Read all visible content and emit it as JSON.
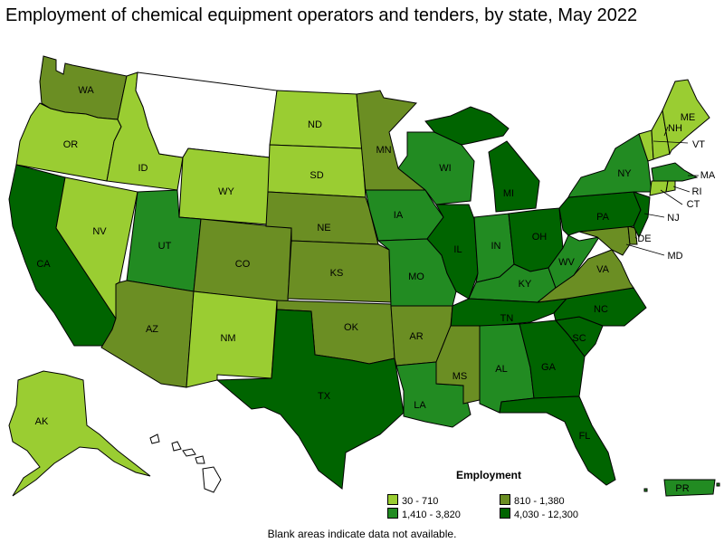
{
  "title": "Employment of chemical equipment operators and tenders, by state, May 2022",
  "legend": {
    "title": "Employment",
    "items": [
      {
        "label": "30 - 710",
        "color": "#9acd32"
      },
      {
        "label": "810 - 1,380",
        "color": "#6b8e23"
      },
      {
        "label": "1,410 - 3,820",
        "color": "#228b22"
      },
      {
        "label": "4,030 - 12,300",
        "color": "#006400"
      }
    ]
  },
  "footnote": "Blank areas indicate data not available.",
  "map_data": {
    "type": "choropleth",
    "no_data_color": "#ffffff",
    "states": [
      {
        "abbr": "WA",
        "tier": 1
      },
      {
        "abbr": "OR",
        "tier": 0
      },
      {
        "abbr": "CA",
        "tier": 3
      },
      {
        "abbr": "ID",
        "tier": 0
      },
      {
        "abbr": "NV",
        "tier": 0
      },
      {
        "abbr": "MT",
        "tier": null
      },
      {
        "abbr": "WY",
        "tier": 0
      },
      {
        "abbr": "UT",
        "tier": 2
      },
      {
        "abbr": "AZ",
        "tier": 1
      },
      {
        "abbr": "CO",
        "tier": 1
      },
      {
        "abbr": "NM",
        "tier": 0
      },
      {
        "abbr": "ND",
        "tier": 0
      },
      {
        "abbr": "SD",
        "tier": 0
      },
      {
        "abbr": "NE",
        "tier": 1
      },
      {
        "abbr": "KS",
        "tier": 1
      },
      {
        "abbr": "OK",
        "tier": 1
      },
      {
        "abbr": "TX",
        "tier": 3
      },
      {
        "abbr": "MN",
        "tier": 1
      },
      {
        "abbr": "IA",
        "tier": 2
      },
      {
        "abbr": "MO",
        "tier": 2
      },
      {
        "abbr": "AR",
        "tier": 1
      },
      {
        "abbr": "LA",
        "tier": 2
      },
      {
        "abbr": "WI",
        "tier": 2
      },
      {
        "abbr": "IL",
        "tier": 3
      },
      {
        "abbr": "MI",
        "tier": 3
      },
      {
        "abbr": "IN",
        "tier": 2
      },
      {
        "abbr": "OH",
        "tier": 3
      },
      {
        "abbr": "KY",
        "tier": 2
      },
      {
        "abbr": "TN",
        "tier": 3
      },
      {
        "abbr": "MS",
        "tier": 1
      },
      {
        "abbr": "AL",
        "tier": 2
      },
      {
        "abbr": "GA",
        "tier": 3
      },
      {
        "abbr": "FL",
        "tier": 3
      },
      {
        "abbr": "SC",
        "tier": 3
      },
      {
        "abbr": "NC",
        "tier": 3
      },
      {
        "abbr": "VA",
        "tier": 1
      },
      {
        "abbr": "WV",
        "tier": 2
      },
      {
        "abbr": "PA",
        "tier": 3
      },
      {
        "abbr": "NY",
        "tier": 2
      },
      {
        "abbr": "ME",
        "tier": 0
      },
      {
        "abbr": "NH",
        "tier": 0
      },
      {
        "abbr": "VT",
        "tier": 0
      },
      {
        "abbr": "MA",
        "tier": 2
      },
      {
        "abbr": "RI",
        "tier": 0
      },
      {
        "abbr": "CT",
        "tier": 0
      },
      {
        "abbr": "NJ",
        "tier": 3
      },
      {
        "abbr": "DE",
        "tier": 1
      },
      {
        "abbr": "MD",
        "tier": 1
      },
      {
        "abbr": "AK",
        "tier": 0
      },
      {
        "abbr": "HI",
        "tier": null
      },
      {
        "abbr": "PR",
        "tier": 2
      }
    ]
  }
}
